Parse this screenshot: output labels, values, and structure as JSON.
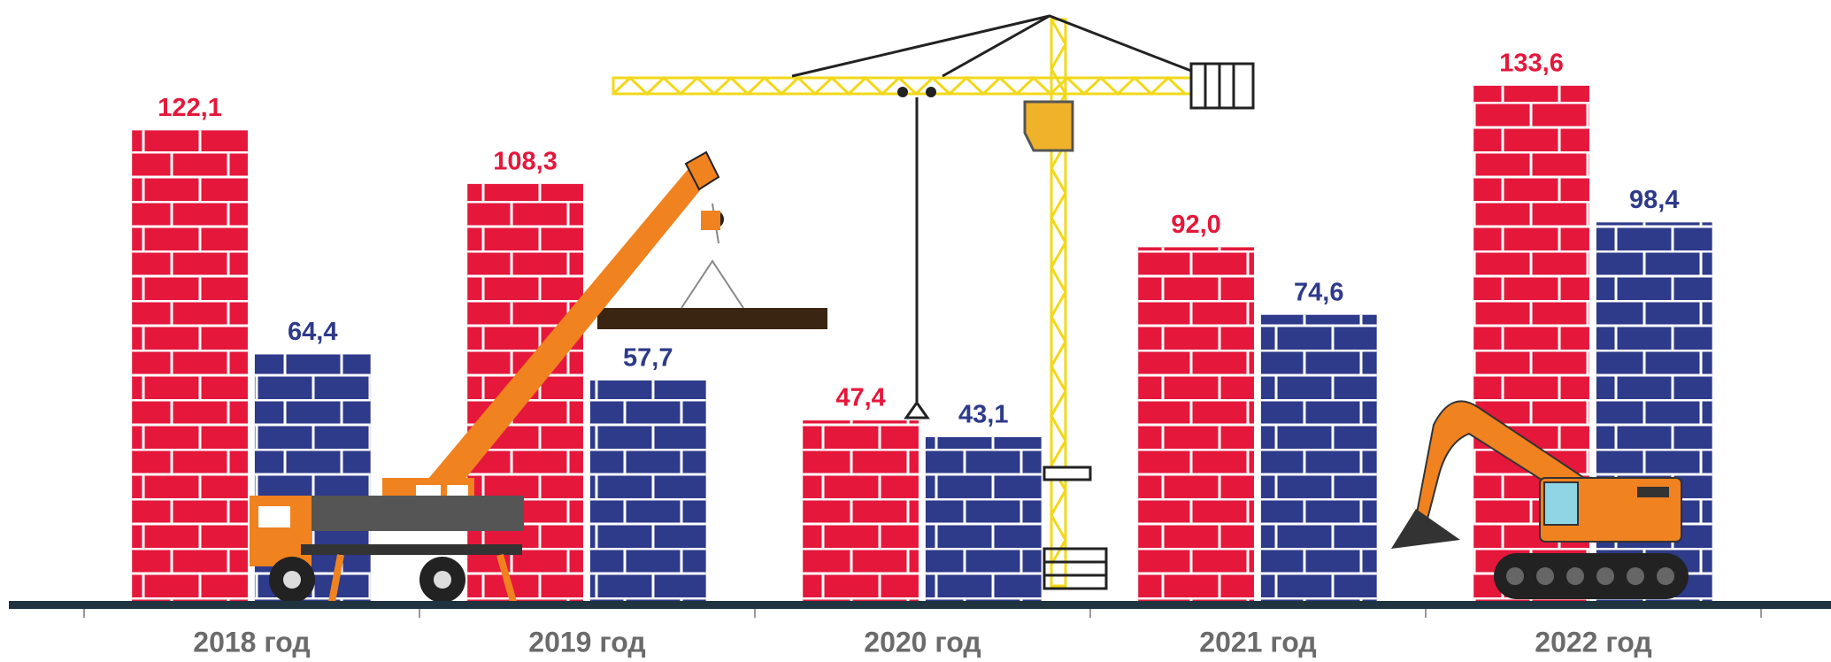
{
  "chart_data": {
    "type": "bar",
    "categories": [
      "2018 год",
      "2019 год",
      "2020 год",
      "2021 год",
      "2022 год"
    ],
    "series": [
      {
        "color": "#e5173b",
        "values": [
          122.1,
          108.3,
          47.4,
          92.0,
          133.6
        ],
        "value_labels": [
          "122,1",
          "108,3",
          "47,4",
          "92,0",
          "133,6"
        ]
      },
      {
        "color": "#2e3a8a",
        "values": [
          64.4,
          57.7,
          43.1,
          74.6,
          98.4
        ],
        "value_labels": [
          "64,4",
          "57,7",
          "43,1",
          "74,6",
          "98,4"
        ]
      }
    ],
    "ylim": [
      0,
      155
    ]
  }
}
